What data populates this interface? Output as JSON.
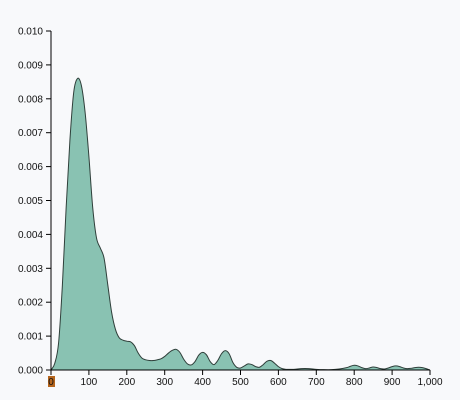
{
  "chart_data": {
    "type": "area",
    "title": "",
    "xlabel": "",
    "ylabel": "",
    "xlim": [
      0,
      1000
    ],
    "ylim": [
      0,
      0.01
    ],
    "grid": false,
    "x_ticks": [
      "0",
      "100",
      "200",
      "300",
      "400",
      "500",
      "600",
      "700",
      "800",
      "900",
      "1,000"
    ],
    "x_tick_values": [
      0,
      100,
      200,
      300,
      400,
      500,
      600,
      700,
      800,
      900,
      1000
    ],
    "y_ticks": [
      "0.000",
      "0.001",
      "0.002",
      "0.003",
      "0.004",
      "0.005",
      "0.006",
      "0.007",
      "0.008",
      "0.009",
      "0.010"
    ],
    "y_tick_values": [
      0,
      0.001,
      0.002,
      0.003,
      0.004,
      0.005,
      0.006,
      0.007,
      0.008,
      0.009,
      0.01
    ],
    "series": [
      {
        "fill_color": "#89c2b2",
        "line_color": "#2f3f3a",
        "points": [
          [
            0,
            0.0
          ],
          [
            10,
            0.0002
          ],
          [
            20,
            0.0008
          ],
          [
            30,
            0.0025
          ],
          [
            40,
            0.0048
          ],
          [
            50,
            0.0068
          ],
          [
            60,
            0.0082
          ],
          [
            70,
            0.0086
          ],
          [
            80,
            0.0084
          ],
          [
            90,
            0.0076
          ],
          [
            100,
            0.0063
          ],
          [
            110,
            0.0048
          ],
          [
            120,
            0.0039
          ],
          [
            130,
            0.0036
          ],
          [
            140,
            0.0033
          ],
          [
            150,
            0.0025
          ],
          [
            160,
            0.0017
          ],
          [
            170,
            0.0012
          ],
          [
            180,
            0.00095
          ],
          [
            190,
            0.00088
          ],
          [
            200,
            0.00085
          ],
          [
            210,
            0.00083
          ],
          [
            220,
            0.00072
          ],
          [
            230,
            0.0005
          ],
          [
            240,
            0.00035
          ],
          [
            250,
            0.0003
          ],
          [
            260,
            0.00028
          ],
          [
            270,
            0.00028
          ],
          [
            280,
            0.0003
          ],
          [
            290,
            0.00033
          ],
          [
            300,
            0.0004
          ],
          [
            310,
            0.0005
          ],
          [
            320,
            0.00058
          ],
          [
            330,
            0.00061
          ],
          [
            340,
            0.00052
          ],
          [
            350,
            0.00032
          ],
          [
            360,
            0.00018
          ],
          [
            370,
            0.00015
          ],
          [
            380,
            0.00025
          ],
          [
            390,
            0.00044
          ],
          [
            400,
            0.00052
          ],
          [
            410,
            0.00045
          ],
          [
            420,
            0.00025
          ],
          [
            430,
            0.00016
          ],
          [
            440,
            0.00028
          ],
          [
            450,
            0.00048
          ],
          [
            460,
            0.00057
          ],
          [
            470,
            0.00048
          ],
          [
            480,
            0.00022
          ],
          [
            490,
            8e-05
          ],
          [
            500,
            6e-05
          ],
          [
            510,
            0.00012
          ],
          [
            520,
            0.00018
          ],
          [
            530,
            0.00016
          ],
          [
            540,
            0.0001
          ],
          [
            550,
            8e-05
          ],
          [
            560,
            0.00016
          ],
          [
            570,
            0.00026
          ],
          [
            580,
            0.00028
          ],
          [
            590,
            0.0002
          ],
          [
            600,
            0.0001
          ],
          [
            610,
            4e-05
          ],
          [
            620,
            2e-05
          ],
          [
            640,
            2e-05
          ],
          [
            660,
            4e-05
          ],
          [
            680,
            4e-05
          ],
          [
            700,
            2e-05
          ],
          [
            720,
            1e-05
          ],
          [
            740,
            1e-05
          ],
          [
            760,
            3e-05
          ],
          [
            780,
            7e-05
          ],
          [
            790,
            0.00011
          ],
          [
            800,
            0.00014
          ],
          [
            810,
            0.00012
          ],
          [
            820,
            7e-05
          ],
          [
            830,
            4e-05
          ],
          [
            840,
            6e-05
          ],
          [
            850,
            9e-05
          ],
          [
            860,
            7e-05
          ],
          [
            870,
            4e-05
          ],
          [
            880,
            3e-05
          ],
          [
            890,
            6e-05
          ],
          [
            900,
            0.0001
          ],
          [
            910,
            0.00012
          ],
          [
            920,
            0.0001
          ],
          [
            930,
            6e-05
          ],
          [
            940,
            4e-05
          ],
          [
            950,
            5e-05
          ],
          [
            960,
            7e-05
          ],
          [
            970,
            8e-05
          ],
          [
            980,
            7e-05
          ],
          [
            990,
            4e-05
          ],
          [
            1000,
            0.0
          ]
        ]
      }
    ]
  }
}
